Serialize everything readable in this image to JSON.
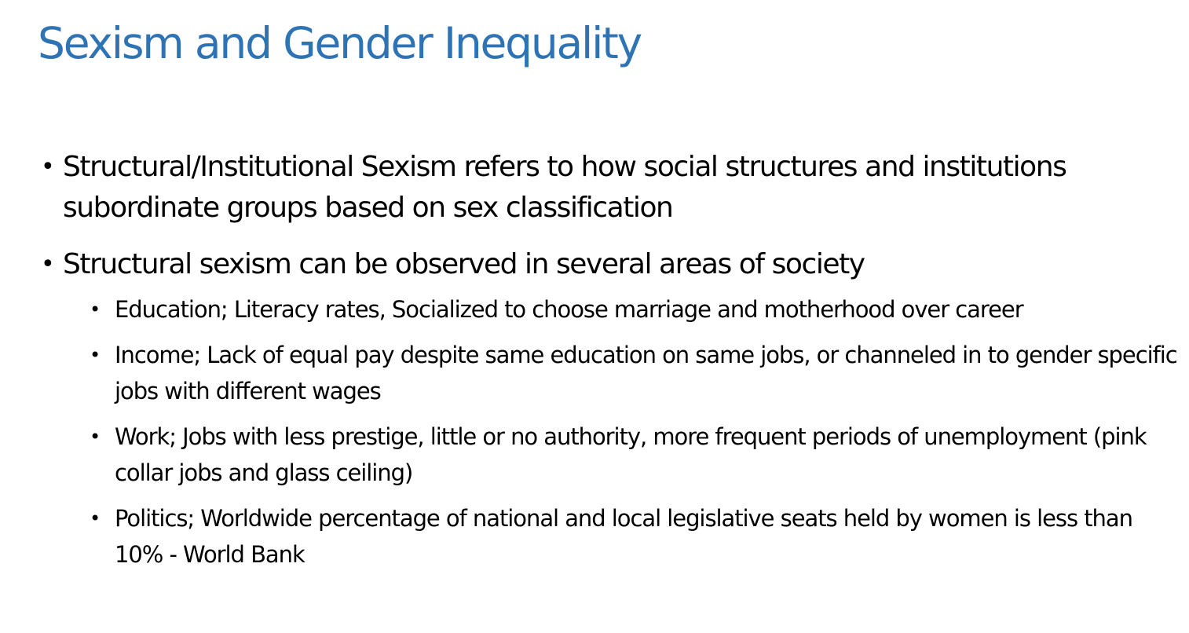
{
  "slide": {
    "title": "Sexism and Gender Inequality",
    "bullets": [
      {
        "text": "Structural/Institutional Sexism refers to how social structures and institutions subordinate groups based on sex classification",
        "sub": []
      },
      {
        "text": "Structural sexism can be observed in several areas of society",
        "sub": [
          "Education; Literacy rates, Socialized to choose marriage and motherhood over career",
          "Income; Lack of equal pay despite same education on same jobs, or channeled in to gender specific jobs with different wages",
          "Work; Jobs with less prestige, little or no authority, more frequent periods of unemployment (pink collar jobs and glass ceiling)",
          "Politics; Worldwide percentage of national and local legislative seats held by women is less than 10% - World Bank"
        ]
      }
    ]
  },
  "colors": {
    "title": "#2e74b5",
    "body_text": "#000000",
    "background": "#ffffff"
  }
}
